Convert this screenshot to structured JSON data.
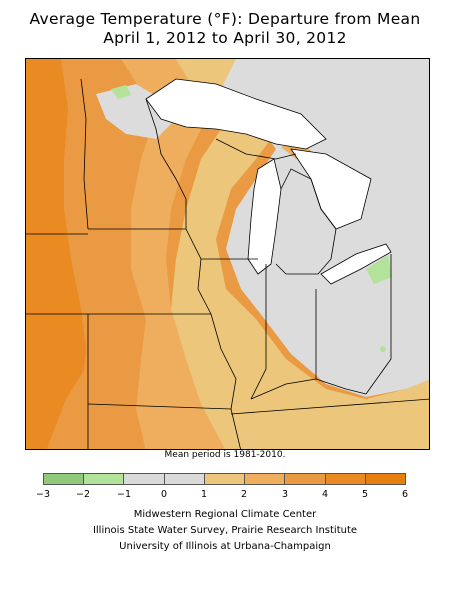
{
  "header": {
    "title_line1": "Average Temperature (°F): Departure from Mean",
    "title_line2": "April 1, 2012 to April 30, 2012"
  },
  "map": {
    "region": "Midwest United States",
    "note": "Mean period is 1981-2010.",
    "colors": {
      "lake": "#ffffff",
      "plus_4_6": "#e98a22",
      "plus_3_4": "#ea9a42",
      "plus_2_3": "#eeae5e",
      "plus_1_2": "#ecc67a",
      "zero_1": "#dcdcdc",
      "minus_1_0": "#b3e29a",
      "border": "#000000"
    }
  },
  "legend": {
    "ticks": [
      "−3",
      "−2",
      "−1",
      "0",
      "1",
      "2",
      "3",
      "4",
      "5",
      "6"
    ],
    "swatches": [
      "#90c97a",
      "#b3e29a",
      "#dadada",
      "#dadada",
      "#ecc67a",
      "#eeae5e",
      "#ea9a42",
      "#e98a22",
      "#e67e10"
    ]
  },
  "footer": {
    "line1": "Midwestern Regional Climate Center",
    "line2": "Illinois State Water Survey, Prairie Research Institute",
    "line3": "University of Illinois at Urbana-Champaign"
  }
}
